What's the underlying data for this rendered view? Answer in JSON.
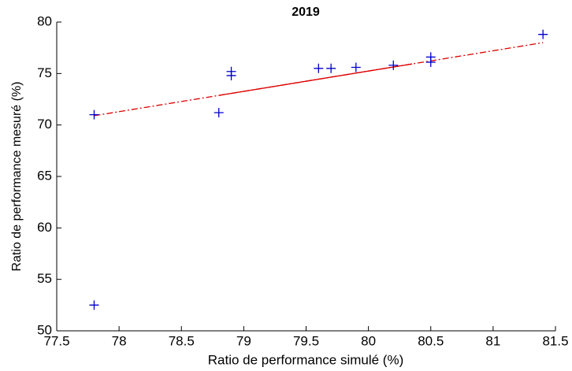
{
  "chart_data": {
    "type": "scatter",
    "title": "2019",
    "xlabel": "Ratio de performance simulé (%)",
    "ylabel": "Ratio de performance mesuré (%)",
    "xlim": [
      77.5,
      81.5
    ],
    "xticks": [
      77.5,
      78,
      78.5,
      79,
      79.5,
      80,
      80.5,
      81,
      81.5
    ],
    "ylim": [
      50,
      80
    ],
    "yticks": [
      50,
      55,
      60,
      65,
      70,
      75,
      80
    ],
    "series": [
      {
        "color": "#0000cc",
        "x": [
          77.8,
          77.8,
          78.8,
          78.9,
          78.9,
          79.6,
          79.7,
          79.9,
          80.2,
          80.5,
          80.5,
          81.4
        ],
        "values": [
          71.0,
          52.5,
          71.2,
          75.2,
          74.8,
          75.5,
          75.5,
          75.6,
          75.8,
          76.6,
          76.1,
          78.8
        ]
      }
    ],
    "fit": {
      "color": "#dd0000",
      "x": [
        77.8,
        81.4
      ],
      "values": [
        70.9,
        78.0
      ]
    },
    "fit_solid": {
      "color": "#dd0000",
      "x": [
        78.8,
        80.35
      ],
      "values": [
        72.87,
        75.93
      ]
    }
  }
}
